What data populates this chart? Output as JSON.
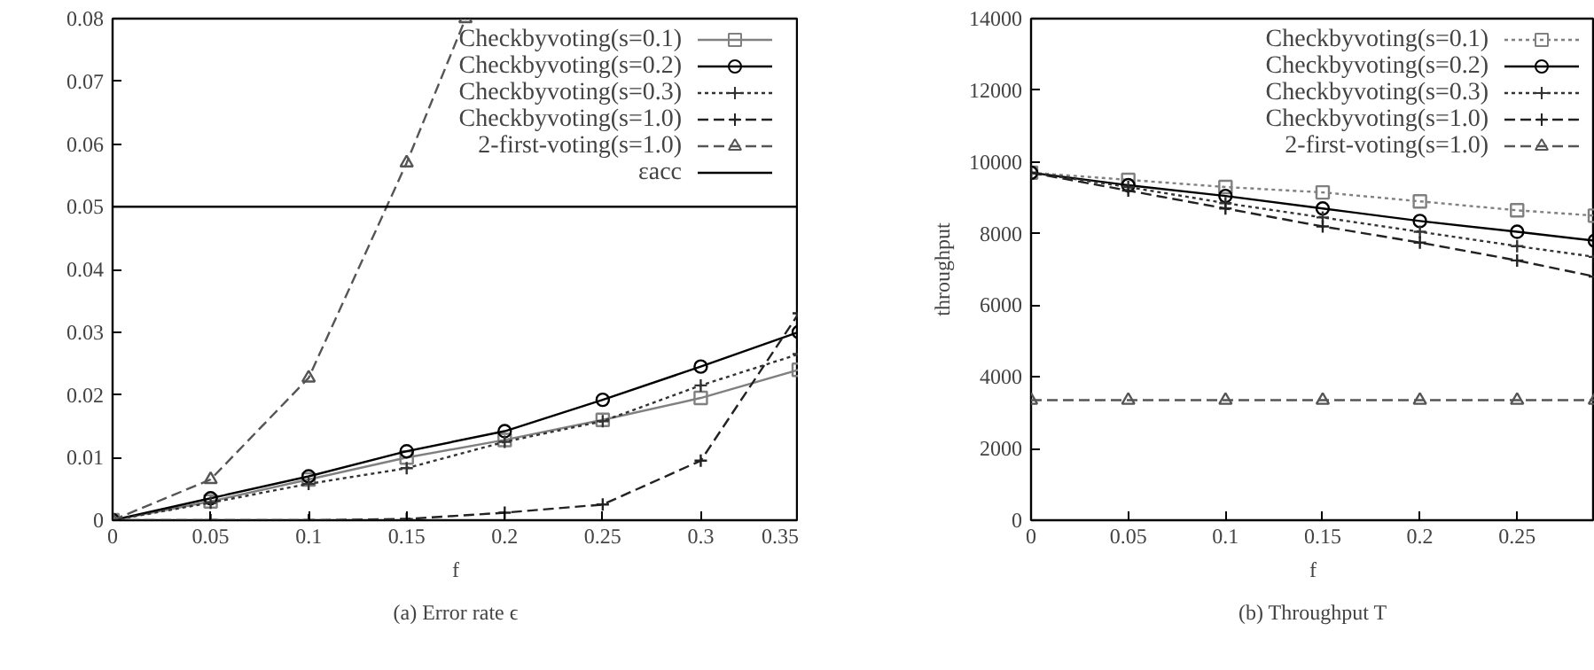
{
  "chart_data": [
    {
      "type": "line",
      "xlabel": "f",
      "x": [
        0,
        0.05,
        0.1,
        0.15,
        0.2,
        0.25,
        0.3,
        0.35
      ],
      "xlim": [
        0,
        0.35
      ],
      "ylim": [
        0,
        0.08
      ],
      "xticks": [
        0,
        0.05,
        0.1,
        0.15,
        0.2,
        0.25,
        0.3,
        0.35
      ],
      "yticks": [
        0,
        0.01,
        0.02,
        0.03,
        0.04,
        0.05,
        0.06,
        0.07,
        0.08
      ],
      "grid": false,
      "legend": "top right",
      "annotations": [
        "(a) Error rate ϵ"
      ],
      "series": [
        {
          "name": "Checkbyvoting(s=0.1)",
          "color": "#808080",
          "marker": "square",
          "line_style": "solid",
          "values": [
            0,
            0.003,
            0.0065,
            0.01,
            0.0128,
            0.016,
            0.0195,
            0.024
          ]
        },
        {
          "name": "Checkbyvoting(s=0.2)",
          "color": "#000000",
          "marker": "circle",
          "line_style": "solid",
          "values": [
            0,
            0.0035,
            0.007,
            0.011,
            0.0142,
            0.0192,
            0.0245,
            0.03
          ]
        },
        {
          "name": "Checkbyvoting(s=0.3)",
          "color": "#333333",
          "marker": "cross",
          "line_style": "dotted",
          "values": [
            0,
            0.0028,
            0.0058,
            0.0083,
            0.0125,
            0.0158,
            0.0215,
            0.0265
          ]
        },
        {
          "name": "Checkbyvoting(s=1.0)",
          "color": "#222222",
          "marker": "cross",
          "line_style": "dashed",
          "values": [
            0,
            0,
            0,
            0.0002,
            0.0012,
            0.0025,
            0.0095,
            0.033
          ]
        },
        {
          "name": "2-first-voting(s=1.0)",
          "color": "#555555",
          "marker": "triangle",
          "line_style": "dashed",
          "x": [
            0,
            0.05,
            0.1,
            0.15,
            0.18
          ],
          "values": [
            0,
            0.0065,
            0.0227,
            0.057,
            0.08
          ]
        }
      ],
      "ref_lines": [
        {
          "axis": "y",
          "value": 0.05,
          "label": "εacc",
          "color": "#000000",
          "line_style": "solid"
        }
      ]
    },
    {
      "type": "line",
      "xlabel": "f",
      "ylabel": "throughput",
      "x": [
        0,
        0.05,
        0.1,
        0.15,
        0.2,
        0.25,
        0.29
      ],
      "xlim": [
        0,
        0.29
      ],
      "ylim": [
        0,
        14000
      ],
      "xticks": [
        0,
        0.05,
        0.1,
        0.15,
        0.2,
        0.25
      ],
      "yticks": [
        0,
        2000,
        4000,
        6000,
        8000,
        10000,
        12000,
        14000
      ],
      "grid": false,
      "legend": "top right",
      "annotations": [
        "(b) Throughput T"
      ],
      "series": [
        {
          "name": "Checkbyvoting(s=0.1)",
          "color": "#808080",
          "marker": "square",
          "line_style": "dotted",
          "values": [
            9700,
            9500,
            9300,
            9150,
            8900,
            8650,
            8500
          ]
        },
        {
          "name": "Checkbyvoting(s=0.2)",
          "color": "#000000",
          "marker": "circle",
          "line_style": "solid",
          "values": [
            9700,
            9350,
            9050,
            8700,
            8350,
            8050,
            7800
          ]
        },
        {
          "name": "Checkbyvoting(s=0.3)",
          "color": "#333333",
          "marker": "cross",
          "line_style": "dotted",
          "values": [
            9700,
            9300,
            8850,
            8450,
            8050,
            7650,
            7350
          ]
        },
        {
          "name": "Checkbyvoting(s=1.0)",
          "color": "#222222",
          "marker": "cross",
          "line_style": "dashed",
          "values": [
            9700,
            9200,
            8700,
            8200,
            7750,
            7250,
            6800
          ]
        },
        {
          "name": "2-first-voting(s=1.0)",
          "color": "#555555",
          "marker": "triangle",
          "line_style": "dashed",
          "values": [
            3350,
            3350,
            3350,
            3350,
            3350,
            3350,
            3350
          ]
        }
      ]
    }
  ]
}
